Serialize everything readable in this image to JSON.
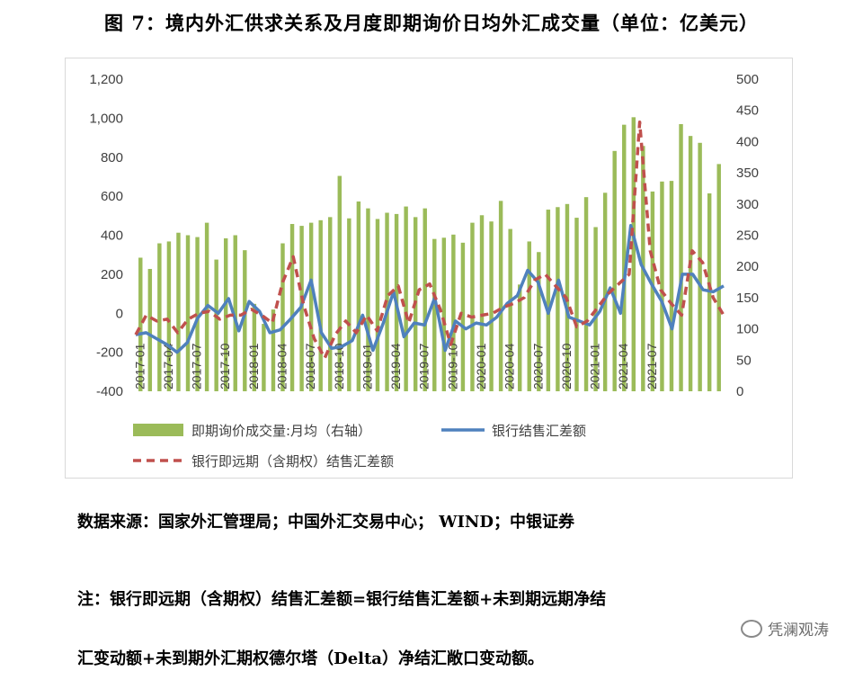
{
  "title": "图 7：境内外汇供求关系及月度即期询价日均外汇成交量（单位：亿美元）",
  "source": "数据来源：国家外汇管理局；中国外汇交易中心；  WIND；中银证券",
  "note_line1": "注：银行即远期（含期权）结售汇差额=银行结售汇差额+未到期远期净结",
  "note_line2": "汇变动额+未到期外汇期权德尔塔（Delta）净结汇敞口变动额。",
  "watermark": "凭澜观涛",
  "chart_data": {
    "type": "bar+line",
    "left_axis": {
      "min": -400,
      "max": 1200,
      "ticks": [
        "-400",
        "-200",
        "0",
        "200",
        "400",
        "600",
        "800",
        "1,000",
        "1,200"
      ]
    },
    "right_axis": {
      "min": 0,
      "max": 500,
      "ticks": [
        "0",
        "50",
        "100",
        "150",
        "200",
        "250",
        "300",
        "350",
        "400",
        "450",
        "500"
      ]
    },
    "x_tick_labels": [
      "2017-01",
      "2017-04",
      "2017-07",
      "2017-10",
      "2018-01",
      "2018-04",
      "2018-07",
      "2018-10",
      "2019-01",
      "2019-04",
      "2019-07",
      "2019-10",
      "2020-01",
      "2020-04",
      "2020-07",
      "2020-10",
      "2021-01",
      "2021-04",
      "2021-07"
    ],
    "x_tick_every": 3,
    "colors": {
      "bars": "#9bbb59",
      "blue": "#4f81bd",
      "red": "#c0504d"
    },
    "legend": [
      {
        "label": "即期询价成交量:月均（右轴）",
        "kind": "bar"
      },
      {
        "label": "银行结售汇差额",
        "kind": "line"
      },
      {
        "label": "银行即远期（含期权）结售汇差额",
        "kind": "dash"
      }
    ],
    "series": [
      {
        "name": "即期询价成交量:月均（右轴）",
        "axis": "right",
        "values": [
          214,
          196,
          237,
          240,
          254,
          250,
          247,
          270,
          211,
          245,
          250,
          226,
          140,
          108,
          131,
          237,
          268,
          265,
          270,
          274,
          279,
          345,
          277,
          304,
          293,
          276,
          286,
          284,
          296,
          279,
          293,
          244,
          246,
          251,
          238,
          270,
          282,
          272,
          305,
          260,
          171,
          240,
          223,
          291,
          295,
          300,
          278,
          311,
          263,
          318,
          385,
          427,
          439,
          393,
          320,
          336,
          337,
          428,
          409,
          398,
          317,
          364
        ]
      },
      {
        "name": "银行结售汇差额",
        "axis": "left",
        "values": [
          -110,
          -100,
          -130,
          -160,
          -200,
          -150,
          -25,
          40,
          0,
          75,
          -90,
          60,
          10,
          -100,
          -85,
          -30,
          30,
          170,
          -100,
          -180,
          -170,
          -140,
          -10,
          -190,
          -50,
          110,
          -120,
          -50,
          -60,
          80,
          -190,
          -40,
          -80,
          -50,
          -60,
          -20,
          50,
          90,
          220,
          160,
          0,
          170,
          -20,
          -40,
          -60,
          10,
          130,
          0,
          450,
          250,
          150,
          60,
          -80,
          200,
          200,
          120,
          110,
          140
        ]
      },
      {
        "name": "银行即远期（含期权）结售汇差额",
        "axis": "left",
        "values": [
          -110,
          -10,
          -40,
          -30,
          -100,
          -30,
          0,
          10,
          -30,
          -10,
          -10,
          20,
          -10,
          -50,
          160,
          290,
          40,
          -130,
          -230,
          -110,
          -40,
          -100,
          -10,
          -90,
          90,
          140,
          -50,
          120,
          150,
          20,
          -160,
          0,
          -20,
          -10,
          0,
          30,
          50,
          80,
          170,
          200,
          140,
          80,
          -70,
          -40,
          30,
          100,
          150,
          200,
          980,
          320,
          120,
          50,
          -10,
          320,
          260,
          80,
          -10
        ]
      }
    ]
  }
}
